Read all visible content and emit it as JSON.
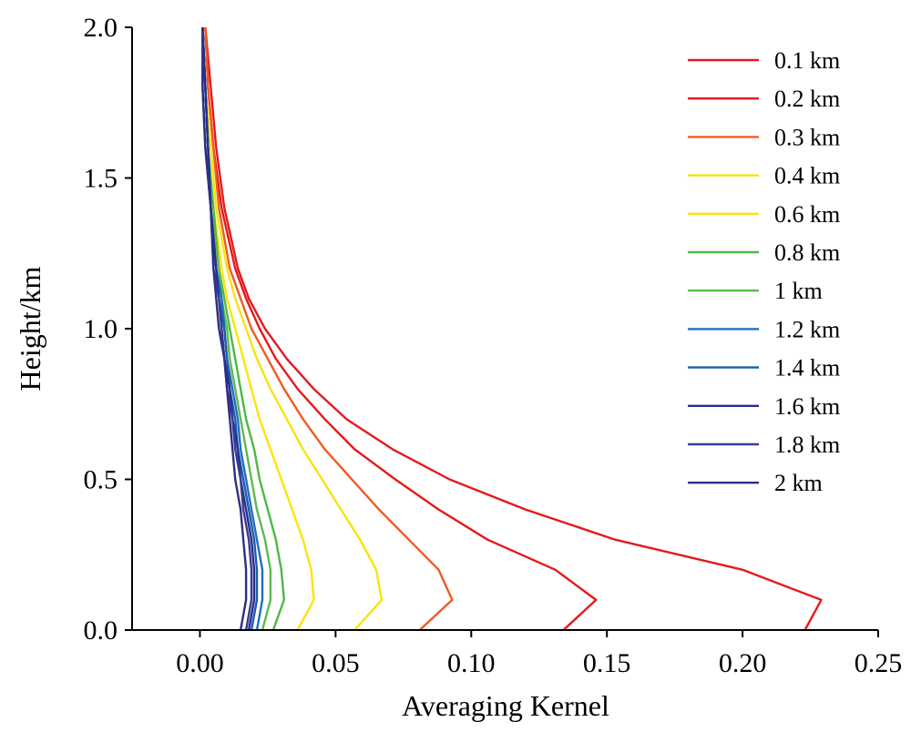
{
  "chart_data": {
    "type": "line",
    "title": "",
    "xlabel": "Averaging Kernel",
    "ylabel": "Height/km",
    "xlim": [
      -0.025,
      0.25
    ],
    "ylim": [
      0,
      2
    ],
    "xticks": [
      0.0,
      0.05,
      0.1,
      0.15,
      0.2,
      0.25
    ],
    "xtick_labels": [
      "0.00",
      "0.05",
      "0.10",
      "0.15",
      "0.20",
      "0.25"
    ],
    "yticks": [
      0.0,
      0.5,
      1.0,
      1.5,
      2.0
    ],
    "ytick_labels": [
      "0.0",
      "0.5",
      "1.0",
      "1.5",
      "2.0"
    ],
    "grid": false,
    "legend_position": "top-right",
    "heights": [
      0.0,
      0.1,
      0.2,
      0.3,
      0.4,
      0.5,
      0.6,
      0.7,
      0.8,
      0.9,
      1.0,
      1.1,
      1.2,
      1.4,
      1.6,
      1.8,
      2.0
    ],
    "series": [
      {
        "name": "0.1 km",
        "color": "#e41a1c",
        "values": [
          0.223,
          0.229,
          0.2,
          0.153,
          0.12,
          0.092,
          0.071,
          0.054,
          0.042,
          0.032,
          0.024,
          0.018,
          0.014,
          0.009,
          0.006,
          0.004,
          0.002
        ]
      },
      {
        "name": "0.2 km",
        "color": "#e41a1c",
        "values": [
          0.134,
          0.146,
          0.131,
          0.106,
          0.088,
          0.072,
          0.057,
          0.046,
          0.036,
          0.028,
          0.022,
          0.017,
          0.013,
          0.008,
          0.005,
          0.003,
          0.002
        ]
      },
      {
        "name": "0.3 km",
        "color": "#f05a23",
        "values": [
          0.081,
          0.093,
          0.088,
          0.077,
          0.066,
          0.056,
          0.046,
          0.038,
          0.031,
          0.025,
          0.019,
          0.015,
          0.011,
          0.007,
          0.005,
          0.003,
          0.002
        ]
      },
      {
        "name": "0.4 km",
        "color": "#f7e30c",
        "values": [
          0.057,
          0.067,
          0.065,
          0.059,
          0.052,
          0.045,
          0.038,
          0.032,
          0.026,
          0.021,
          0.017,
          0.013,
          0.01,
          0.006,
          0.004,
          0.002,
          0.001
        ]
      },
      {
        "name": "0.6 km",
        "color": "#fde30b",
        "values": [
          0.036,
          0.042,
          0.041,
          0.038,
          0.034,
          0.03,
          0.026,
          0.022,
          0.019,
          0.016,
          0.013,
          0.01,
          0.008,
          0.005,
          0.003,
          0.002,
          0.001
        ]
      },
      {
        "name": "0.8 km",
        "color": "#4cb848",
        "values": [
          0.027,
          0.031,
          0.03,
          0.028,
          0.025,
          0.022,
          0.02,
          0.017,
          0.015,
          0.013,
          0.011,
          0.009,
          0.007,
          0.005,
          0.003,
          0.002,
          0.001
        ]
      },
      {
        "name": "1 km",
        "color": "#5dba4f",
        "values": [
          0.023,
          0.026,
          0.026,
          0.024,
          0.021,
          0.019,
          0.017,
          0.015,
          0.013,
          0.011,
          0.01,
          0.008,
          0.007,
          0.004,
          0.003,
          0.002,
          0.001
        ]
      },
      {
        "name": "1.2 km",
        "color": "#1f6fc1",
        "values": [
          0.021,
          0.023,
          0.023,
          0.021,
          0.019,
          0.017,
          0.015,
          0.014,
          0.012,
          0.01,
          0.009,
          0.008,
          0.006,
          0.004,
          0.003,
          0.002,
          0.001
        ]
      },
      {
        "name": "1.4 km",
        "color": "#1a5ea8",
        "values": [
          0.019,
          0.021,
          0.021,
          0.02,
          0.018,
          0.016,
          0.014,
          0.013,
          0.011,
          0.01,
          0.009,
          0.007,
          0.006,
          0.004,
          0.003,
          0.002,
          0.001
        ]
      },
      {
        "name": "1.6 km",
        "color": "#252e8c",
        "values": [
          0.018,
          0.02,
          0.02,
          0.019,
          0.017,
          0.015,
          0.014,
          0.012,
          0.011,
          0.009,
          0.008,
          0.007,
          0.006,
          0.004,
          0.003,
          0.002,
          0.001
        ]
      },
      {
        "name": "1.8 km",
        "color": "#3b3a98",
        "values": [
          0.017,
          0.019,
          0.019,
          0.018,
          0.016,
          0.015,
          0.013,
          0.012,
          0.01,
          0.009,
          0.008,
          0.007,
          0.005,
          0.004,
          0.002,
          0.001,
          0.001
        ]
      },
      {
        "name": "2 km",
        "color": "#2f2e86",
        "values": [
          0.015,
          0.017,
          0.017,
          0.016,
          0.015,
          0.013,
          0.012,
          0.011,
          0.01,
          0.009,
          0.007,
          0.006,
          0.005,
          0.004,
          0.002,
          0.001,
          0.001
        ]
      }
    ]
  }
}
